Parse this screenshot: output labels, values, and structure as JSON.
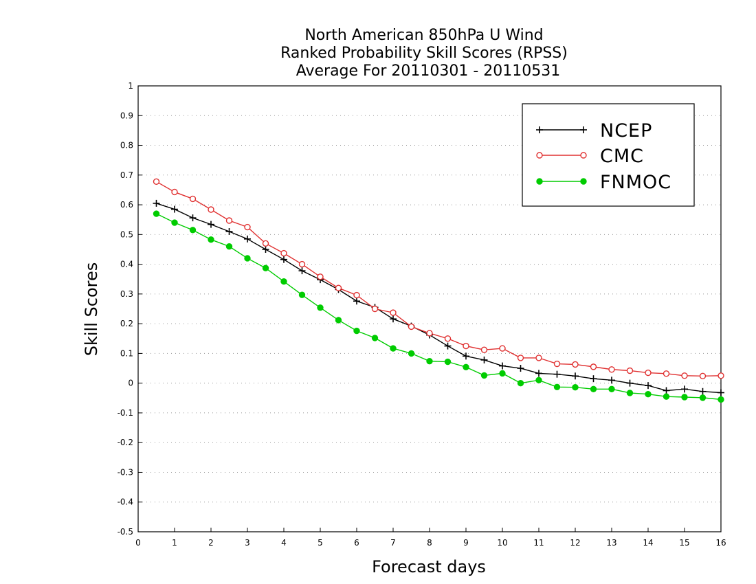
{
  "chart_data": {
    "type": "line",
    "title_lines": [
      "North American 850hPa U Wind",
      "Ranked Probability Skill Scores (RPSS)",
      "Average For 20110301 - 20110531"
    ],
    "xlabel": "Forecast days",
    "ylabel": "Skill Scores",
    "xlim": [
      0,
      16
    ],
    "ylim": [
      -0.5,
      1
    ],
    "x_ticks": [
      0,
      1,
      2,
      3,
      4,
      5,
      6,
      7,
      8,
      9,
      10,
      11,
      12,
      13,
      14,
      15,
      16
    ],
    "x_tick_labels": [
      "0",
      "1",
      "2",
      "3",
      "4",
      "5",
      "6",
      "7",
      "8",
      "9",
      "10",
      "11",
      "12",
      "13",
      "14",
      "15",
      "16"
    ],
    "y_ticks": [
      -0.5,
      -0.4,
      -0.3,
      -0.2,
      -0.1,
      0,
      0.1,
      0.2,
      0.3,
      0.4,
      0.5,
      0.6,
      0.7,
      0.8,
      0.9,
      1
    ],
    "y_tick_labels": [
      "-0.5",
      "-0.4",
      "-0.3",
      "-0.2",
      "-0.1",
      "0",
      "0.1",
      "0.2",
      "0.3",
      "0.4",
      "0.5",
      "0.6",
      "0.7",
      "0.8",
      "0.9",
      "1"
    ],
    "grid": "horizontal dotted",
    "legend_position": "top-right",
    "x": [
      0.5,
      1,
      1.5,
      2,
      2.5,
      3,
      3.5,
      4,
      4.5,
      5,
      5.5,
      6,
      6.5,
      7,
      7.5,
      8,
      8.5,
      9,
      9.5,
      10,
      10.5,
      11,
      11.5,
      12,
      12.5,
      13,
      13.5,
      14,
      14.5,
      15,
      15.5,
      16
    ],
    "series": [
      {
        "name": "NCEP",
        "color": "#000000",
        "marker": "plus",
        "values": [
          0.605,
          0.585,
          0.556,
          0.534,
          0.51,
          0.485,
          0.45,
          0.416,
          0.378,
          0.348,
          0.315,
          0.276,
          0.255,
          0.216,
          0.192,
          0.162,
          0.125,
          0.091,
          0.078,
          0.058,
          0.05,
          0.033,
          0.03,
          0.024,
          0.015,
          0.01,
          0.0,
          -0.008,
          -0.025,
          -0.02,
          -0.028,
          -0.032
        ]
      },
      {
        "name": "CMC",
        "color": "#e03030",
        "marker": "open-circle",
        "values": [
          0.678,
          0.643,
          0.62,
          0.584,
          0.547,
          0.525,
          0.47,
          0.437,
          0.4,
          0.358,
          0.32,
          0.296,
          0.25,
          0.237,
          0.19,
          0.168,
          0.15,
          0.125,
          0.112,
          0.117,
          0.085,
          0.085,
          0.065,
          0.063,
          0.055,
          0.046,
          0.042,
          0.035,
          0.032,
          0.025,
          0.024,
          0.025
        ]
      },
      {
        "name": "FNMOC",
        "color": "#00cc00",
        "marker": "filled-circle",
        "values": [
          0.57,
          0.54,
          0.515,
          0.483,
          0.46,
          0.42,
          0.387,
          0.342,
          0.297,
          0.254,
          0.212,
          0.176,
          0.152,
          0.117,
          0.1,
          0.074,
          0.072,
          0.054,
          0.026,
          0.033,
          0.0,
          0.01,
          -0.013,
          -0.014,
          -0.02,
          -0.02,
          -0.033,
          -0.037,
          -0.045,
          -0.047,
          -0.049,
          -0.055
        ]
      }
    ]
  }
}
